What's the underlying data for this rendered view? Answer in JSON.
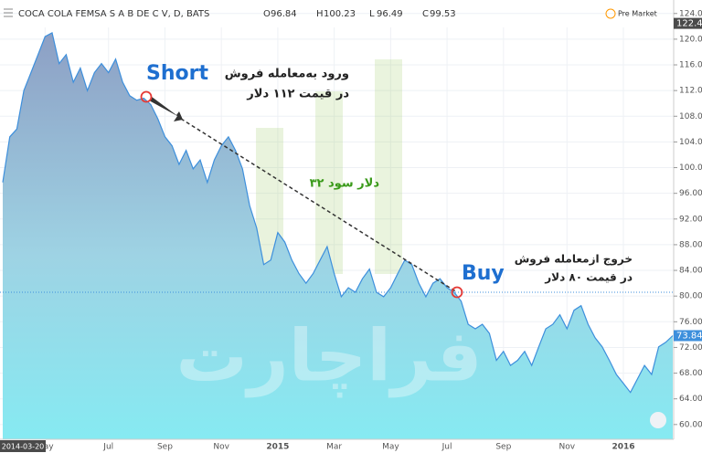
{
  "chart_data": {
    "type": "area",
    "title": "COCA COLA FEMSA S A B DE C V, D, BATS",
    "ohlc": [
      {
        "label": "O",
        "value": 96.84
      },
      {
        "label": "H",
        "value": 100.23
      },
      {
        "label": "L",
        "value": 96.49
      },
      {
        "label": "C",
        "value": 99.53
      }
    ],
    "market_status": "Pre Market",
    "cursor_date": "2014-03-20",
    "cursor_price": 122.46,
    "last_price": 73.84,
    "color": "#3d8fdc",
    "values": [
      97.7,
      104.8,
      106,
      112,
      114.8,
      117.6,
      120.4,
      121,
      116.2,
      117.6,
      113.3,
      115.5,
      112,
      114.8,
      116.2,
      114.8,
      116.9,
      113.3,
      111.2,
      110.5,
      110.8,
      109.8,
      107.6,
      104.8,
      103.4,
      100.5,
      102.7,
      99.8,
      101.2,
      97.7,
      101.2,
      103.4,
      104.8,
      102.7,
      99.8,
      94.1,
      90.6,
      84.9,
      85.6,
      89.9,
      88.4,
      85.6,
      83.5,
      82.0,
      83.5,
      85.6,
      87.7,
      83.5,
      79.9,
      81.3,
      80.6,
      82.7,
      84.2,
      80.6,
      79.9,
      81.3,
      83.5,
      85.6,
      84.9,
      82.0,
      79.9,
      82.0,
      82.7,
      81.3,
      80.6,
      79.2,
      75.6,
      74.9,
      75.6,
      74.2,
      70.0,
      71.4,
      69.2,
      70.0,
      71.4,
      69.2,
      72.1,
      74.9,
      75.6,
      77.1,
      74.9,
      77.8,
      78.5,
      75.6,
      73.5,
      72.1,
      70.0,
      67.8,
      66.4,
      65.0,
      67.1,
      69.2,
      67.8,
      72.1,
      72.8,
      73.84
    ],
    "xlim": [
      0,
      95
    ],
    "xticks": [
      {
        "value": 6,
        "label": "May"
      },
      {
        "value": 15,
        "label": "Jul"
      },
      {
        "value": 23,
        "label": "Sep"
      },
      {
        "value": 31,
        "label": "Nov"
      },
      {
        "value": 39,
        "label": "2015"
      },
      {
        "value": 47,
        "label": "Mar"
      },
      {
        "value": 55,
        "label": "May"
      },
      {
        "value": 63,
        "label": "Jul"
      },
      {
        "value": 71,
        "label": "Sep"
      },
      {
        "value": 80,
        "label": "Nov"
      },
      {
        "value": 88,
        "label": "2016"
      }
    ],
    "ylim": [
      57.7,
      126.1
    ],
    "yticks": [
      {
        "value": 60,
        "label": "60.00"
      },
      {
        "value": 64,
        "label": "64.00"
      },
      {
        "value": 68,
        "label": "68.00"
      },
      {
        "value": 72,
        "label": "72.00"
      },
      {
        "value": 76,
        "label": "76.00"
      },
      {
        "value": 80,
        "label": "80.00"
      },
      {
        "value": 84,
        "label": "84.00"
      },
      {
        "value": 88,
        "label": "88.00"
      },
      {
        "value": 92,
        "label": "92.00"
      },
      {
        "value": 96,
        "label": "96.00"
      },
      {
        "value": 100,
        "label": "100.00"
      },
      {
        "value": 104,
        "label": "104.00"
      },
      {
        "value": 108,
        "label": "108.00"
      },
      {
        "value": 112,
        "label": "112.00"
      },
      {
        "value": 116,
        "label": "116.00"
      },
      {
        "value": 120,
        "label": "120.00"
      },
      {
        "value": 124,
        "label": "124.00"
      }
    ],
    "grid": true,
    "annotations": {
      "short": "Short",
      "short_line1": "ورود به‌معامله فروش",
      "short_line2": "در قیمت ۱۱۲ دلار",
      "profit": "۳۲ دلار سود",
      "buy": "Buy",
      "buy_line1": "خروج ازمعامله فروش",
      "buy_line2": "در قیمت ۸۰ دلار"
    },
    "watermark": "فراچارت"
  }
}
